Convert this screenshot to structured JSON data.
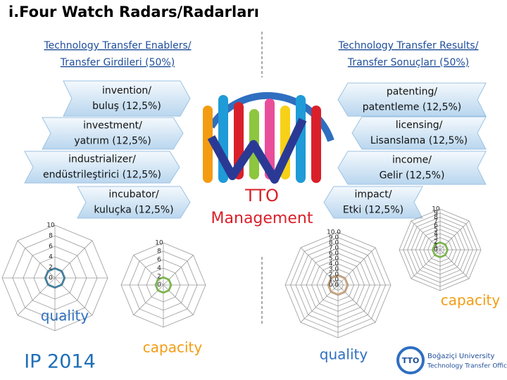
{
  "title": "i.Four Watch Radars/Radarları",
  "left_heading": [
    "Technology Transfer Enablers/",
    "Transfer Girdileri (50%)"
  ],
  "right_heading": [
    "Technology Transfer Results/",
    "Transfer Sonuçları (50%)"
  ],
  "enablers": [
    [
      "invention/",
      "buluş (12,5%)"
    ],
    [
      "investment/",
      "yatırım (12,5%)"
    ],
    [
      "industrializer/",
      "endüstrileştirici (12,5%)"
    ],
    [
      "incubator/",
      "kuluçka (12,5%)"
    ]
  ],
  "results": [
    [
      "patenting/",
      "patentleme (12,5%)"
    ],
    [
      "licensing/",
      "Lisanslama (12,5%)"
    ],
    [
      "income/",
      "Gelir (12,5%)"
    ],
    [
      "impact/",
      "Etki (12,5%)"
    ]
  ],
  "center": [
    "TTO",
    "Management"
  ],
  "radars": [
    {
      "ticks": [
        "10",
        "8",
        "6",
        "4",
        "2",
        "0"
      ],
      "label": "quality"
    },
    {
      "ticks": [
        "10",
        "8",
        "6",
        "4",
        "2",
        "0"
      ],
      "label": "capacity"
    },
    {
      "ticks": [
        "10.0",
        "9.0",
        "8.0",
        "7.0",
        "6.0",
        "5.0",
        "4.0",
        "3.0",
        "2.0",
        "1.0",
        "0.0"
      ],
      "label": "quality"
    },
    {
      "ticks": [
        "10",
        "9",
        "8",
        "7",
        "6",
        "5",
        "4",
        "3",
        "2",
        "1",
        "0"
      ],
      "label": "capacity"
    }
  ],
  "footer": "IP 2014",
  "logo": {
    "mark": "TTO",
    "name": "Boğaziçi University",
    "office": "Technology Transfer Office"
  }
}
